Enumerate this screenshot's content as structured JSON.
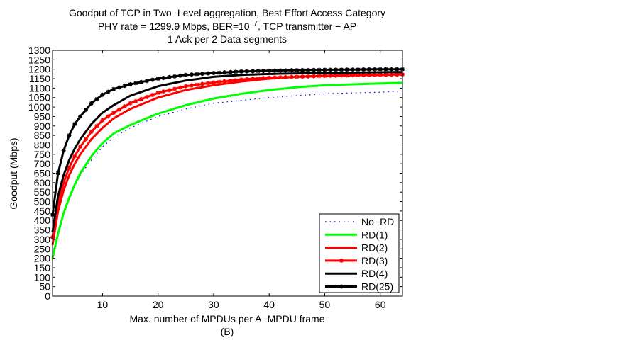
{
  "chart_data": {
    "type": "line",
    "title_lines": [
      {
        "text": "Goodput of TCP in Two−Level aggregation, Best Effort Access Category"
      },
      {
        "pre": "PHY rate = 1299.9 Mbps, BER=10",
        "sup": "−7",
        "post": ", TCP transmitter − AP"
      },
      {
        "text": "1 Ack per 2 Data segments"
      }
    ],
    "xlabel": "Max. number of MPDUs per A−MPDU frame",
    "caption": "(B)",
    "ylabel": "Goodput (Mbps)",
    "xlim": [
      1,
      64
    ],
    "ylim": [
      0,
      1300
    ],
    "xticks": [
      10,
      20,
      30,
      40,
      50,
      60
    ],
    "yticks": [
      0,
      50,
      100,
      150,
      200,
      250,
      300,
      350,
      400,
      450,
      500,
      550,
      600,
      650,
      700,
      750,
      800,
      850,
      900,
      950,
      1000,
      1050,
      1100,
      1150,
      1200,
      1250,
      1300
    ],
    "grid": false,
    "legend_position": "bottom-right",
    "x": [
      1,
      2,
      3,
      4,
      5,
      6,
      8,
      10,
      12,
      15,
      20,
      25,
      30,
      35,
      40,
      45,
      50,
      55,
      60,
      64
    ],
    "series": [
      {
        "name": "No−RD",
        "color": "#0000ff",
        "style": "dotted",
        "marker": "none",
        "values": [
          200,
          330,
          430,
          510,
          580,
          640,
          720,
          790,
          840,
          890,
          950,
          990,
          1020,
          1035,
          1050,
          1060,
          1070,
          1075,
          1078,
          1085
        ]
      },
      {
        "name": "RD(1)",
        "color": "#00ff00",
        "style": "solid",
        "marker": "none",
        "values": [
          200,
          330,
          440,
          520,
          590,
          650,
          740,
          810,
          860,
          905,
          965,
          1010,
          1045,
          1070,
          1090,
          1105,
          1115,
          1120,
          1125,
          1128
        ]
      },
      {
        "name": "RD(2)",
        "color": "#ff0000",
        "style": "solid",
        "marker": "none",
        "values": [
          270,
          450,
          560,
          640,
          700,
          750,
          830,
          890,
          940,
          990,
          1050,
          1090,
          1115,
          1135,
          1150,
          1160,
          1165,
          1168,
          1170,
          1175
        ]
      },
      {
        "name": "RD(3)",
        "color": "#ff0000",
        "style": "solid",
        "marker": "asterisk",
        "values": [
          310,
          490,
          600,
          680,
          740,
          790,
          870,
          930,
          970,
          1020,
          1075,
          1110,
          1130,
          1145,
          1155,
          1160,
          1165,
          1168,
          1170,
          1172
        ]
      },
      {
        "name": "RD(4)",
        "color": "#000000",
        "style": "solid",
        "marker": "none",
        "values": [
          340,
          530,
          640,
          720,
          780,
          830,
          910,
          970,
          1010,
          1060,
          1110,
          1140,
          1160,
          1170,
          1175,
          1178,
          1180,
          1182,
          1184,
          1185
        ]
      },
      {
        "name": "RD(25)",
        "color": "#000000",
        "style": "solid",
        "marker": "asterisk",
        "values": [
          430,
          650,
          770,
          850,
          910,
          950,
          1020,
          1065,
          1095,
          1120,
          1150,
          1170,
          1180,
          1188,
          1192,
          1195,
          1197,
          1198,
          1200,
          1200
        ]
      }
    ]
  }
}
